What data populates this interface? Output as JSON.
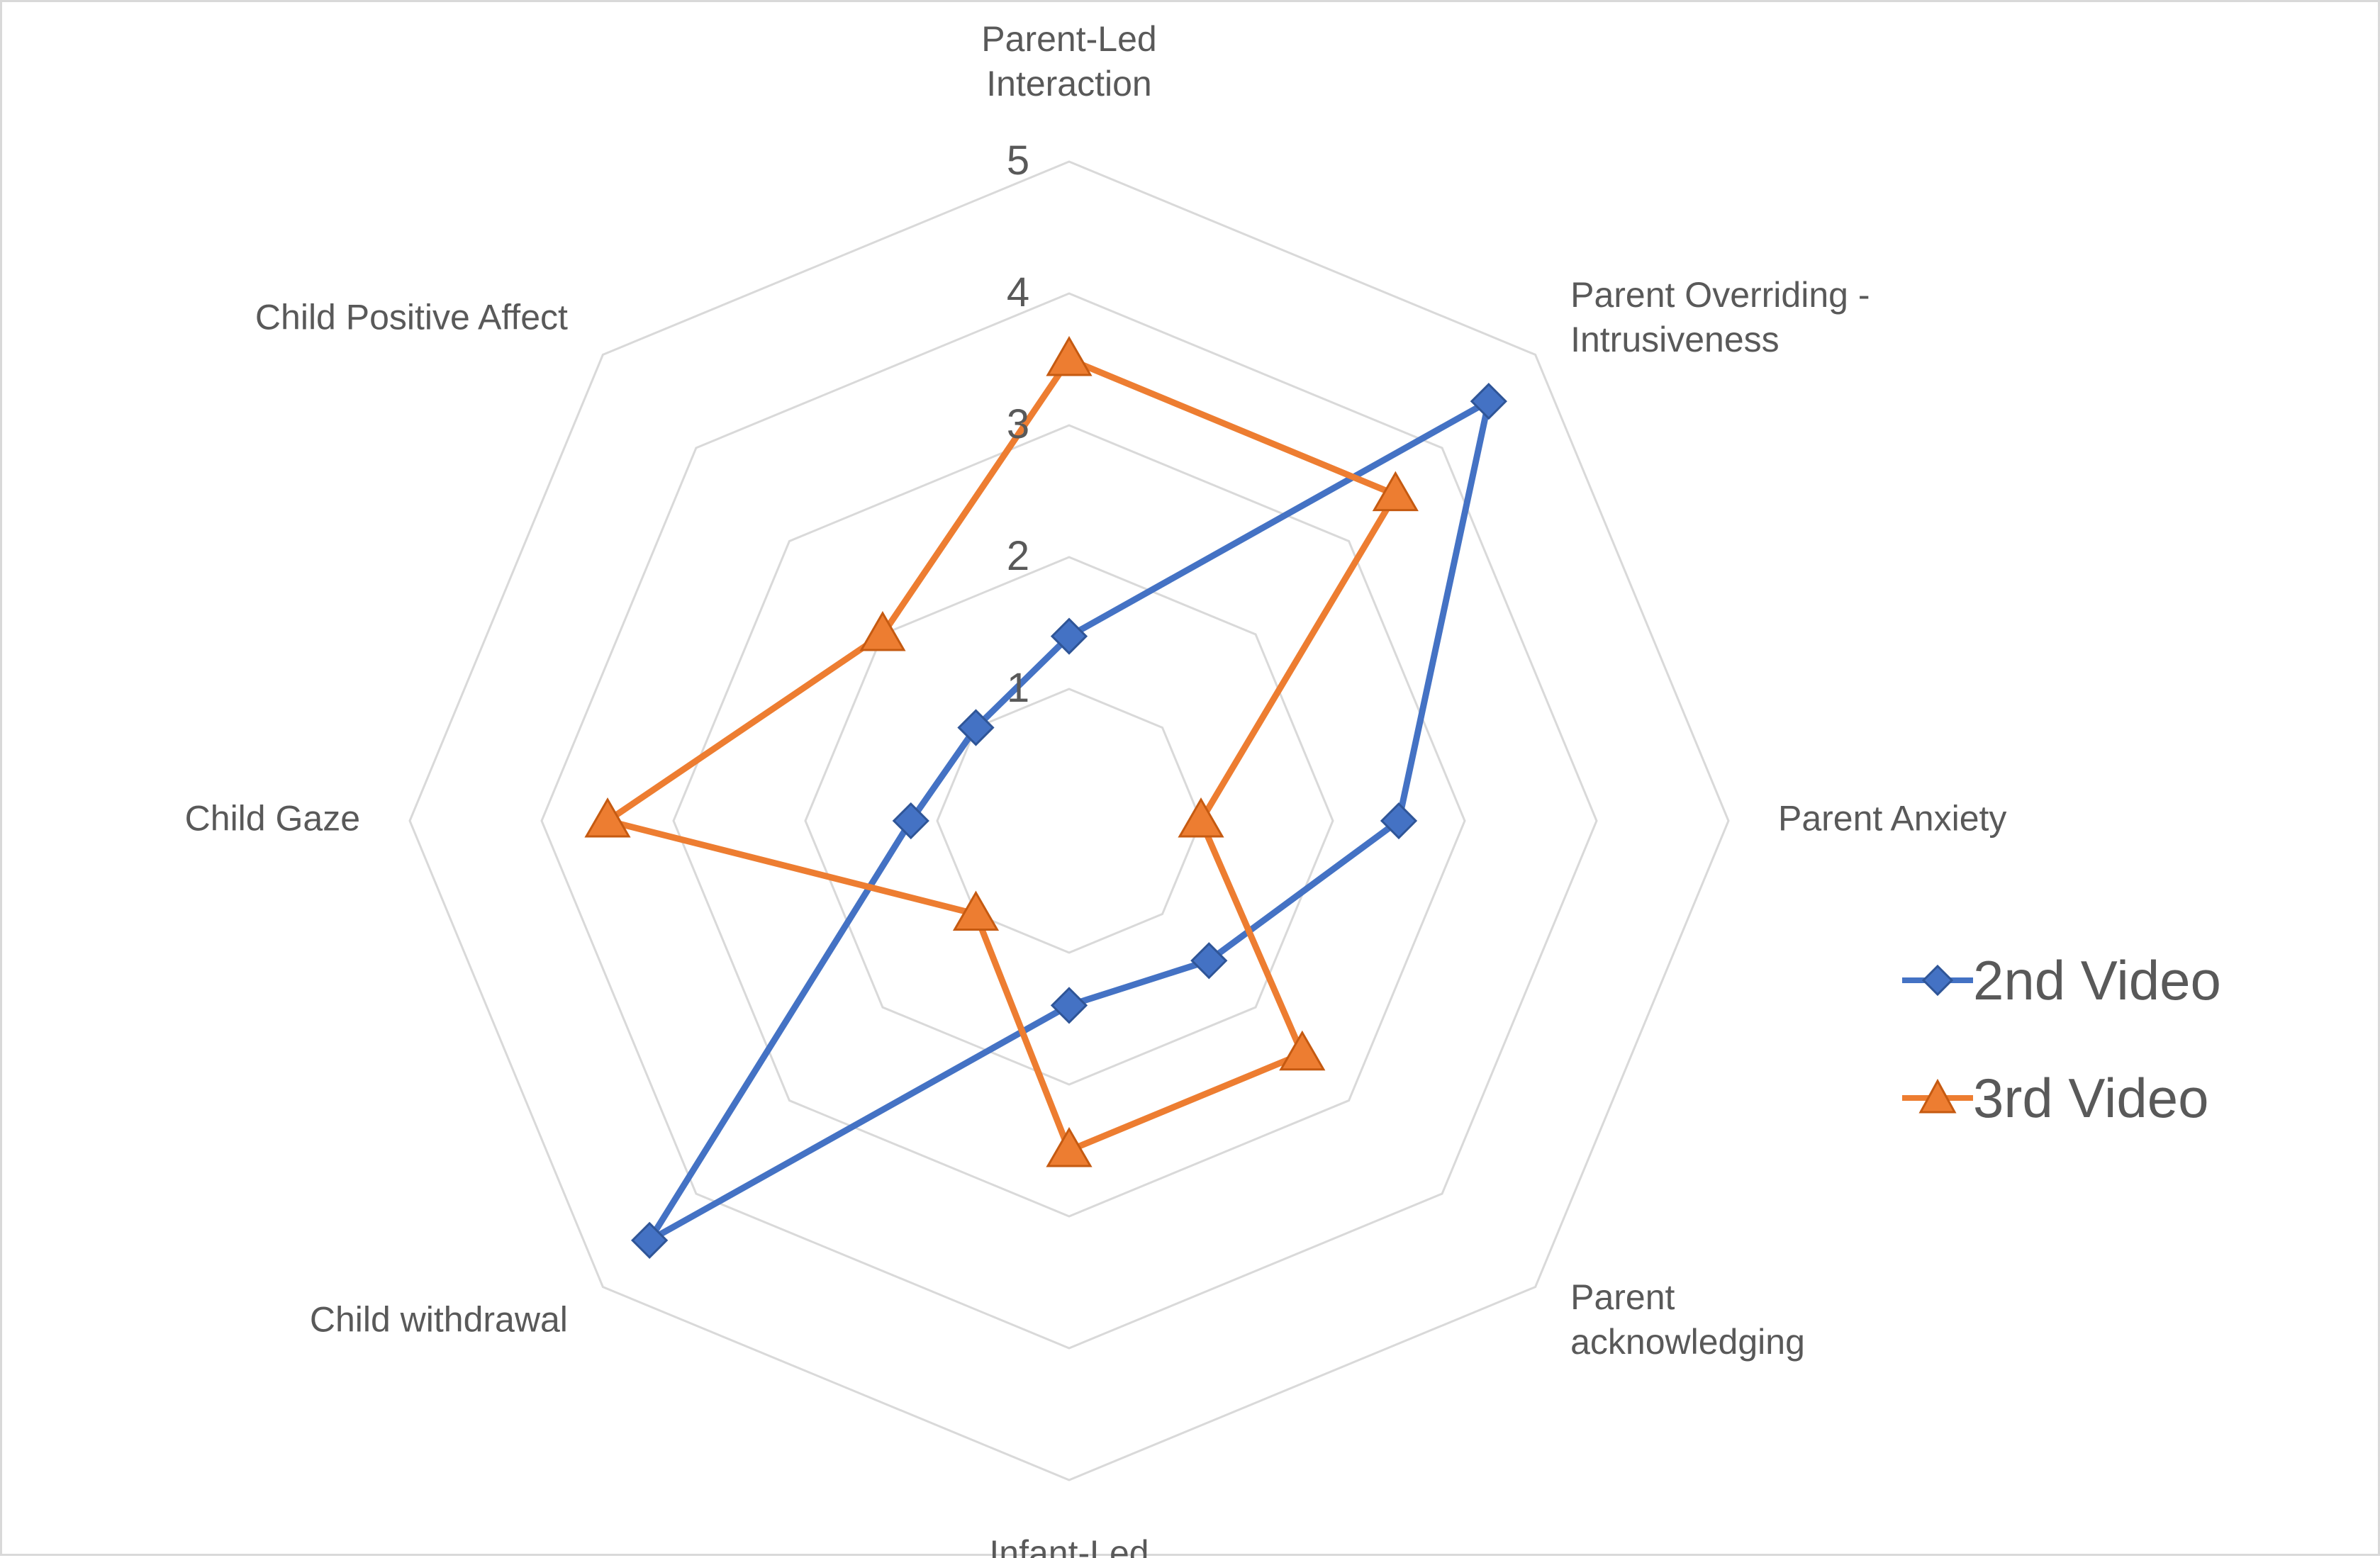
{
  "chart_data": {
    "type": "radar",
    "title": "",
    "categories": [
      "Parent-Led Interaction",
      "Parent Overriding - Intrusiveness",
      "Parent Anxiety",
      "Parent acknowledging",
      "Infant-Led Interaction",
      "Child withdrawal",
      "Child Gaze",
      "Child Positive Affect"
    ],
    "category_label_lines": [
      [
        "Parent-Led",
        "Interaction"
      ],
      [
        "Parent Overriding -",
        "Intrusiveness"
      ],
      [
        "Parent Anxiety"
      ],
      [
        "Parent",
        "acknowledging"
      ],
      [
        "Infant-Led",
        "Interaction"
      ],
      [
        "Child withdrawal"
      ],
      [
        "Child Gaze"
      ],
      [
        "Child Positive Affect"
      ]
    ],
    "rlim": [
      0,
      5
    ],
    "ticks": [
      1,
      2,
      3,
      4,
      5
    ],
    "series": [
      {
        "name": "2nd Video",
        "values": [
          1.4,
          4.5,
          2.5,
          1.5,
          1.4,
          4.5,
          1.2,
          1.0
        ],
        "color": "#4472c4",
        "marker": "diamond"
      },
      {
        "name": "3rd Video",
        "values": [
          3.5,
          3.5,
          1.0,
          2.5,
          2.5,
          1.0,
          3.5,
          2.0
        ],
        "color": "#ed7d31",
        "marker": "triangle"
      }
    ],
    "grid": true,
    "legend_position": "right"
  }
}
